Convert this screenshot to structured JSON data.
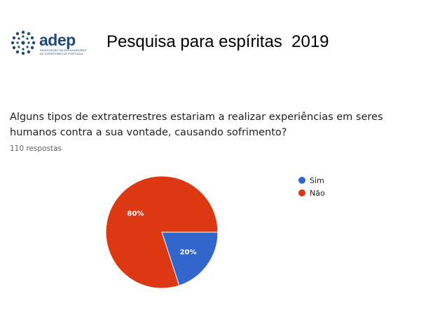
{
  "header": {
    "logo_text": "adep",
    "logo_subtitle": "ASSOCIAÇÃO DE DIVULGADORES DE ESPIRITISMO DE PORTUGAL",
    "title": "Pesquisa para espíritas  2019"
  },
  "question": {
    "text": "Alguns tipos de extraterrestres estariam a realizar experiências em seres humanos contra a sua vontade, causando sofrimento?",
    "responses": "110 respostas"
  },
  "colors": {
    "sim": "#3366cc",
    "nao": "#dc3912",
    "logo": "#1d4a7a"
  },
  "chart_data": {
    "type": "pie",
    "title": "",
    "slices": [
      {
        "label": "Sim",
        "value": 20,
        "display": "20%",
        "color": "#3366cc"
      },
      {
        "label": "Não",
        "value": 80,
        "display": "80%",
        "color": "#dc3912"
      }
    ],
    "legend_position": "right"
  }
}
